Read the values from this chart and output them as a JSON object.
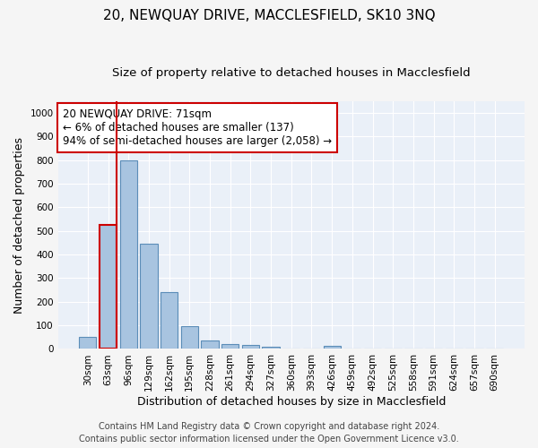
{
  "title": "20, NEWQUAY DRIVE, MACCLESFIELD, SK10 3NQ",
  "subtitle": "Size of property relative to detached houses in Macclesfield",
  "xlabel": "Distribution of detached houses by size in Macclesfield",
  "ylabel": "Number of detached properties",
  "bar_color": "#a8c4e0",
  "bar_edge_color": "#5b8db8",
  "categories": [
    "30sqm",
    "63sqm",
    "96sqm",
    "129sqm",
    "162sqm",
    "195sqm",
    "228sqm",
    "261sqm",
    "294sqm",
    "327sqm",
    "360sqm",
    "393sqm",
    "426sqm",
    "459sqm",
    "492sqm",
    "525sqm",
    "558sqm",
    "591sqm",
    "624sqm",
    "657sqm",
    "690sqm"
  ],
  "values": [
    52,
    525,
    800,
    447,
    240,
    97,
    37,
    20,
    18,
    11,
    0,
    0,
    12,
    0,
    0,
    0,
    0,
    0,
    0,
    0,
    0
  ],
  "highlight_bar_index": 1,
  "highlight_bar_edge_color": "#cc0000",
  "annotation_line1": "20 NEWQUAY DRIVE: 71sqm",
  "annotation_line2": "← 6% of detached houses are smaller (137)",
  "annotation_line3": "94% of semi-detached houses are larger (2,058) →",
  "annotation_box_color": "#ffffff",
  "annotation_box_edge_color": "#cc0000",
  "vline_x": 1.42,
  "ylim": [
    0,
    1050
  ],
  "yticks": [
    0,
    100,
    200,
    300,
    400,
    500,
    600,
    700,
    800,
    900,
    1000
  ],
  "footer_line1": "Contains HM Land Registry data © Crown copyright and database right 2024.",
  "footer_line2": "Contains public sector information licensed under the Open Government Licence v3.0.",
  "background_color": "#eaf0f8",
  "grid_color": "#ffffff",
  "fig_background": "#f5f5f5",
  "title_fontsize": 11,
  "subtitle_fontsize": 9.5,
  "axis_label_fontsize": 9,
  "tick_fontsize": 7.5,
  "annotation_fontsize": 8.5,
  "footer_fontsize": 7
}
